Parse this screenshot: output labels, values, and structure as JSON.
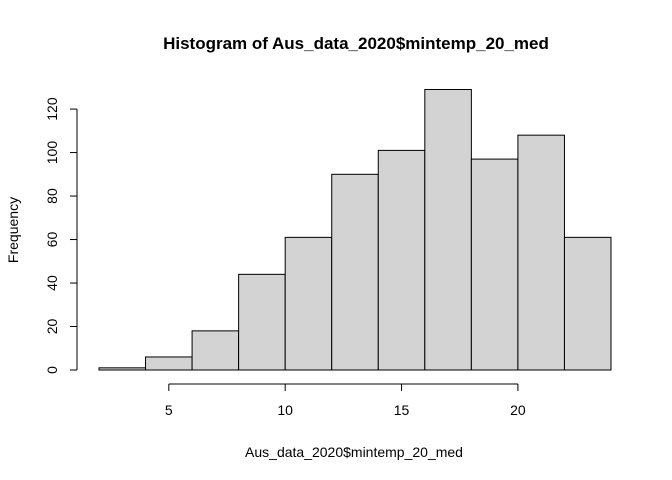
{
  "chart_data": {
    "type": "bar",
    "title": "Histogram of Aus_data_2020$mintemp_20_med",
    "xlabel": "Aus_data_2020$mintemp_20_med",
    "ylabel": "Frequency",
    "bins": [
      {
        "from": 2,
        "to": 4,
        "count": 1
      },
      {
        "from": 4,
        "to": 6,
        "count": 6
      },
      {
        "from": 6,
        "to": 8,
        "count": 18
      },
      {
        "from": 8,
        "to": 10,
        "count": 44
      },
      {
        "from": 10,
        "to": 12,
        "count": 61
      },
      {
        "from": 12,
        "to": 14,
        "count": 90
      },
      {
        "from": 14,
        "to": 16,
        "count": 101
      },
      {
        "from": 16,
        "to": 18,
        "count": 129
      },
      {
        "from": 18,
        "to": 20,
        "count": 97
      },
      {
        "from": 20,
        "to": 22,
        "count": 108
      },
      {
        "from": 22,
        "to": 24,
        "count": 61
      }
    ],
    "xlim": [
      2,
      24
    ],
    "ylim": [
      0,
      129
    ],
    "xticks": [
      5,
      10,
      15,
      20
    ],
    "yticks": [
      0,
      20,
      40,
      60,
      80,
      100,
      120
    ],
    "grid": false,
    "bar_fill": "#d3d3d3",
    "bar_stroke": "#000000"
  }
}
